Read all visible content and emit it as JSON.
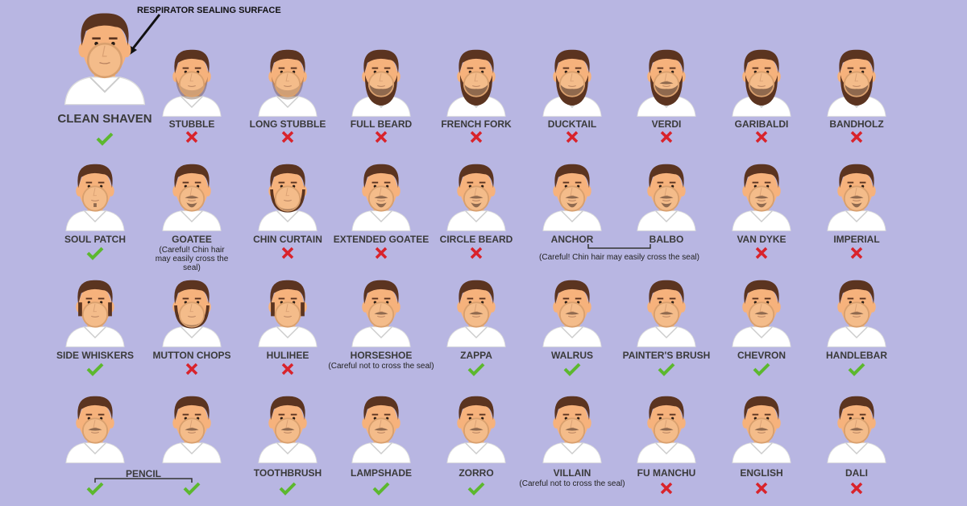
{
  "callout": "RESPIRATOR SEALING SURFACE",
  "rows": [
    [
      {
        "name": "CLEAN SHAVEN",
        "ok": true
      },
      {
        "name": "STUBBLE",
        "ok": false
      },
      {
        "name": "LONG STUBBLE",
        "ok": false
      },
      {
        "name": "FULL BEARD",
        "ok": false
      },
      {
        "name": "FRENCH FORK",
        "ok": false
      },
      {
        "name": "DUCKTAIL",
        "ok": false
      },
      {
        "name": "VERDI",
        "ok": false
      },
      {
        "name": "GARIBALDI",
        "ok": false
      },
      {
        "name": "BANDHOLZ",
        "ok": false
      }
    ],
    [
      {
        "name": "SOUL PATCH",
        "ok": true
      },
      {
        "name": "GOATEE",
        "note": "(Careful! Chin hair may easily cross the seal)"
      },
      {
        "name": "CHIN CURTAIN",
        "ok": false
      },
      {
        "name": "EXTENDED GOATEE",
        "ok": false
      },
      {
        "name": "CIRCLE BEARD",
        "ok": false
      },
      {
        "note": "(Careful! Chin hair may easily cross the seal)",
        "items": [
          {
            "name": "ANCHOR"
          },
          {
            "name": "BALBO"
          }
        ]
      },
      {
        "name": "VAN DYKE",
        "ok": false
      },
      {
        "name": "IMPERIAL",
        "ok": false
      }
    ],
    [
      {
        "name": "SIDE WHISKERS",
        "ok": true
      },
      {
        "name": "MUTTON CHOPS",
        "ok": false
      },
      {
        "name": "HULIHEE",
        "ok": false
      },
      {
        "name": "HORSESHOE",
        "note": "(Careful not to cross the seal)"
      },
      {
        "name": "ZAPPA",
        "ok": true
      },
      {
        "name": "WALRUS",
        "ok": true
      },
      {
        "name": "PAINTER'S BRUSH",
        "ok": true
      },
      {
        "name": "CHEVRON",
        "ok": true
      },
      {
        "name": "HANDLEBAR",
        "ok": true
      }
    ],
    [
      {
        "group": "PENCIL",
        "items": [
          {
            "ok": true
          },
          {
            "ok": true
          }
        ]
      },
      {
        "name": "TOOTHBRUSH",
        "ok": true
      },
      {
        "name": "LAMPSHADE",
        "ok": true
      },
      {
        "name": "ZORRO",
        "ok": true
      },
      {
        "name": "VILLAIN",
        "note": "(Careful not to cross the seal)"
      },
      {
        "name": "FU MANCHU",
        "ok": false
      },
      {
        "name": "ENGLISH",
        "ok": false
      },
      {
        "name": "DALI",
        "ok": false
      }
    ]
  ]
}
